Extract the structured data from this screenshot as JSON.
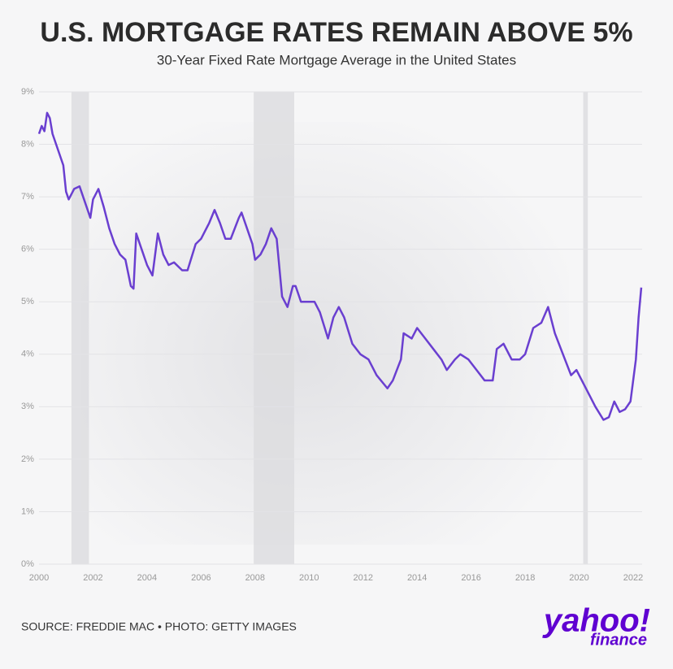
{
  "chart_data": {
    "type": "line",
    "title": "U.S. MORTGAGE RATES REMAIN ABOVE 5%",
    "subtitle": "30-Year Fixed Rate Mortgage Average in the United States",
    "source": "SOURCE: FREDDIE MAC • PHOTO: GETTY IMAGES",
    "logo": {
      "brand": "yahoo!",
      "product": "finance"
    },
    "xlim": [
      2000,
      2022.3
    ],
    "xticks": [
      2000,
      2002,
      2004,
      2006,
      2008,
      2010,
      2012,
      2014,
      2016,
      2018,
      2020,
      2022
    ],
    "ylim": [
      0,
      9
    ],
    "yticks": [
      {
        "value": 0,
        "label": "0%"
      },
      {
        "value": 1,
        "label": "1%"
      },
      {
        "value": 2,
        "label": "2%"
      },
      {
        "value": 3,
        "label": "3%"
      },
      {
        "value": 4,
        "label": "4%"
      },
      {
        "value": 5,
        "label": "5%"
      },
      {
        "value": 6,
        "label": "6%"
      },
      {
        "value": 7,
        "label": "7%"
      },
      {
        "value": 8,
        "label": "8%"
      },
      {
        "value": 9,
        "label": "9%"
      }
    ],
    "grid": true,
    "shaded_periods": [
      [
        2001.2,
        2001.85
      ],
      [
        2007.95,
        2009.45
      ],
      [
        2020.15,
        2020.32
      ]
    ],
    "shade_color": "#dcdcdf",
    "series": [
      {
        "color": "#6a3fd0",
        "x": [
          2000.0,
          2000.1,
          2000.2,
          2000.3,
          2000.4,
          2000.5,
          2000.7,
          2000.9,
          2001.0,
          2001.1,
          2001.3,
          2001.5,
          2001.7,
          2001.9,
          2002.0,
          2002.2,
          2002.4,
          2002.6,
          2002.8,
          2003.0,
          2003.2,
          2003.4,
          2003.5,
          2003.6,
          2003.8,
          2004.0,
          2004.2,
          2004.4,
          2004.6,
          2004.8,
          2005.0,
          2005.3,
          2005.5,
          2005.8,
          2006.0,
          2006.3,
          2006.5,
          2006.7,
          2006.9,
          2007.1,
          2007.4,
          2007.5,
          2007.7,
          2007.9,
          2008.0,
          2008.2,
          2008.4,
          2008.6,
          2008.8,
          2009.0,
          2009.2,
          2009.4,
          2009.5,
          2009.7,
          2010.0,
          2010.2,
          2010.4,
          2010.7,
          2010.9,
          2011.1,
          2011.3,
          2011.6,
          2011.9,
          2012.2,
          2012.5,
          2012.9,
          2013.1,
          2013.4,
          2013.5,
          2013.8,
          2014.0,
          2014.3,
          2014.6,
          2014.9,
          2015.1,
          2015.4,
          2015.6,
          2015.9,
          2016.2,
          2016.5,
          2016.8,
          2016.95,
          2017.2,
          2017.5,
          2017.8,
          2018.0,
          2018.3,
          2018.6,
          2018.85,
          2019.1,
          2019.4,
          2019.7,
          2019.9,
          2020.1,
          2020.3,
          2020.6,
          2020.9,
          2021.1,
          2021.3,
          2021.5,
          2021.7,
          2021.9,
          2022.0,
          2022.1,
          2022.2,
          2022.3
        ],
        "values": [
          8.2,
          8.35,
          8.25,
          8.6,
          8.5,
          8.2,
          7.9,
          7.6,
          7.1,
          6.95,
          7.15,
          7.2,
          6.9,
          6.6,
          6.95,
          7.15,
          6.8,
          6.4,
          6.1,
          5.9,
          5.8,
          5.3,
          5.25,
          6.3,
          6.0,
          5.7,
          5.5,
          6.3,
          5.9,
          5.7,
          5.75,
          5.6,
          5.6,
          6.1,
          6.2,
          6.5,
          6.75,
          6.5,
          6.2,
          6.2,
          6.6,
          6.7,
          6.4,
          6.1,
          5.8,
          5.9,
          6.1,
          6.4,
          6.2,
          5.1,
          4.9,
          5.3,
          5.3,
          5.0,
          5.0,
          5.0,
          4.8,
          4.3,
          4.7,
          4.9,
          4.7,
          4.2,
          4.0,
          3.9,
          3.6,
          3.35,
          3.5,
          3.9,
          4.4,
          4.3,
          4.5,
          4.3,
          4.1,
          3.9,
          3.7,
          3.9,
          4.0,
          3.9,
          3.7,
          3.5,
          3.5,
          4.1,
          4.2,
          3.9,
          3.9,
          4.0,
          4.5,
          4.6,
          4.9,
          4.4,
          4.0,
          3.6,
          3.7,
          3.5,
          3.3,
          3.0,
          2.75,
          2.8,
          3.1,
          2.9,
          2.95,
          3.1,
          3.5,
          3.9,
          4.7,
          5.27
        ]
      }
    ]
  }
}
